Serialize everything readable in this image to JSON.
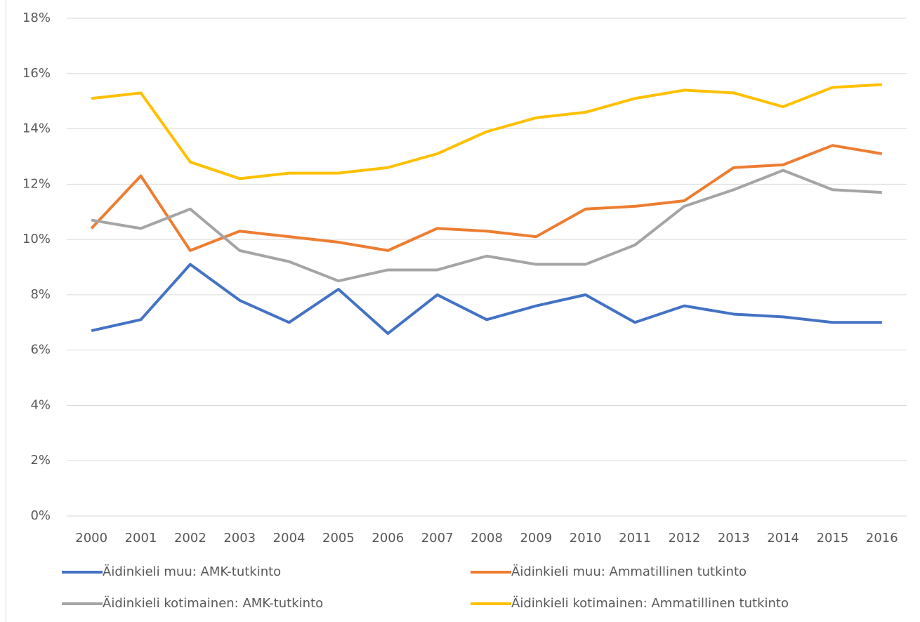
{
  "chart_data": {
    "type": "line",
    "categories": [
      "2000",
      "2001",
      "2002",
      "2003",
      "2004",
      "2005",
      "2006",
      "2007",
      "2008",
      "2009",
      "2010",
      "2011",
      "2012",
      "2013",
      "2014",
      "2015",
      "2016"
    ],
    "series": [
      {
        "name": "Äidinkieli muu: AMK-tutkinto",
        "color": "#4472c4",
        "values": [
          6.7,
          7.1,
          9.1,
          7.8,
          7.0,
          8.2,
          6.6,
          8.0,
          7.1,
          7.6,
          8.0,
          7.0,
          7.6,
          7.3,
          7.2,
          7.0,
          7.0
        ]
      },
      {
        "name": "Äidinkieli muu: Ammatillinen tutkinto",
        "color": "#ed7d31",
        "values": [
          10.4,
          12.3,
          9.6,
          10.3,
          10.1,
          9.9,
          9.6,
          10.4,
          10.3,
          10.1,
          11.1,
          11.2,
          11.4,
          12.6,
          12.7,
          13.4,
          13.1
        ]
      },
      {
        "name": "Äidinkieli kotimainen: AMK-tutkinto",
        "color": "#a5a5a5",
        "values": [
          10.7,
          10.4,
          11.1,
          9.6,
          9.2,
          8.5,
          8.9,
          8.9,
          9.4,
          9.1,
          9.1,
          9.8,
          11.2,
          11.8,
          12.5,
          11.8,
          11.7
        ]
      },
      {
        "name": "Äidinkieli kotimainen: Ammatillinen tutkinto",
        "color": "#ffc000",
        "values": [
          15.1,
          15.3,
          12.8,
          12.2,
          12.4,
          12.4,
          12.6,
          13.1,
          13.9,
          14.4,
          14.6,
          15.1,
          15.4,
          15.3,
          14.8,
          15.5,
          15.6
        ]
      }
    ],
    "ylim": [
      0,
      18
    ],
    "yticks": [
      {
        "value": 0,
        "label": "0%"
      },
      {
        "value": 2,
        "label": "2%"
      },
      {
        "value": 4,
        "label": "4%"
      },
      {
        "value": 6,
        "label": "6%"
      },
      {
        "value": 8,
        "label": "8%"
      },
      {
        "value": 10,
        "label": "10%"
      },
      {
        "value": 12,
        "label": "12%"
      },
      {
        "value": 14,
        "label": "14%"
      },
      {
        "value": 16,
        "label": "16%"
      },
      {
        "value": 18,
        "label": "18%"
      }
    ],
    "grid": true,
    "legend": "bottom"
  }
}
